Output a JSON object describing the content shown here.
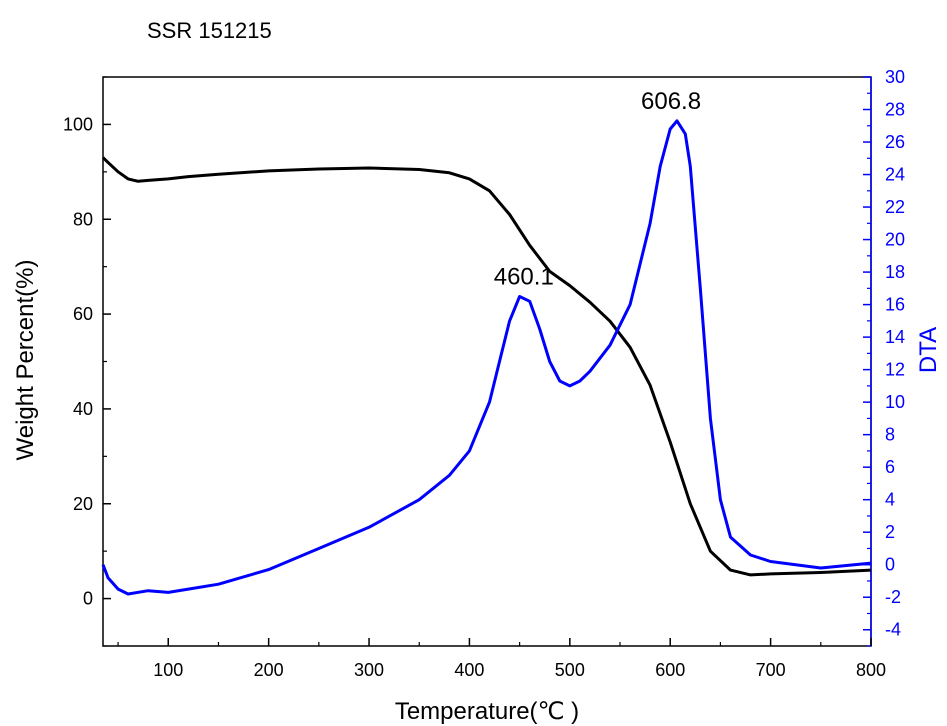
{
  "chart_data": {
    "type": "line",
    "title": "SSR 151215",
    "xlabel": "Temperature(℃ )",
    "ylabel": "Weight Percent(%)",
    "y2label": "DTA",
    "xlim": [
      35,
      800
    ],
    "ylim": [
      -10,
      110
    ],
    "y2lim": [
      -5,
      30
    ],
    "xticks": [
      100,
      200,
      300,
      400,
      500,
      600,
      700,
      800
    ],
    "yticks": [
      0,
      20,
      40,
      60,
      80,
      100
    ],
    "y2ticks": [
      -4,
      -2,
      0,
      2,
      4,
      6,
      8,
      10,
      12,
      14,
      16,
      18,
      20,
      22,
      24,
      26,
      28,
      30
    ],
    "grid": false,
    "colors": {
      "axis_left": "#000000",
      "axis_right": "#0000ff",
      "tga_line": "#000000",
      "dta_line": "#0000ff"
    },
    "series": [
      {
        "axis": "left",
        "color": "#000000",
        "x": [
          35,
          40,
          50,
          60,
          70,
          80,
          100,
          120,
          150,
          200,
          250,
          300,
          350,
          380,
          400,
          420,
          440,
          460,
          480,
          500,
          520,
          540,
          560,
          580,
          600,
          620,
          640,
          660,
          680,
          700,
          750,
          800
        ],
        "y": [
          93,
          92,
          90,
          88.5,
          88,
          88.2,
          88.5,
          89,
          89.5,
          90.2,
          90.6,
          90.8,
          90.5,
          89.8,
          88.5,
          86,
          81,
          74.5,
          69,
          66,
          62.5,
          58.5,
          53,
          45,
          33,
          20,
          10,
          6,
          5,
          5.2,
          5.5,
          6
        ]
      },
      {
        "axis": "right",
        "color": "#0000ff",
        "x": [
          35,
          40,
          50,
          60,
          80,
          100,
          120,
          150,
          200,
          250,
          300,
          350,
          380,
          400,
          420,
          430,
          440,
          450,
          460,
          470,
          480,
          490,
          500,
          510,
          520,
          540,
          560,
          580,
          590,
          600,
          606.8,
          615,
          620,
          630,
          640,
          650,
          660,
          680,
          700,
          750,
          800
        ],
        "y": [
          0,
          -0.8,
          -1.5,
          -1.8,
          -1.6,
          -1.7,
          -1.5,
          -1.2,
          -0.3,
          1.0,
          2.3,
          4.0,
          5.5,
          7.0,
          10.0,
          12.5,
          15.0,
          16.5,
          16.2,
          14.5,
          12.5,
          11.3,
          11.0,
          11.3,
          11.9,
          13.5,
          16.0,
          21.0,
          24.5,
          26.8,
          27.3,
          26.5,
          24.5,
          17.0,
          9.0,
          4.0,
          1.7,
          0.6,
          0.2,
          -0.2,
          0.1
        ]
      }
    ],
    "annotations": [
      {
        "label": "460.1",
        "x": 460.1,
        "y2": 16.5
      },
      {
        "label": "606.8",
        "x": 606.8,
        "y2": 27.3
      }
    ]
  }
}
